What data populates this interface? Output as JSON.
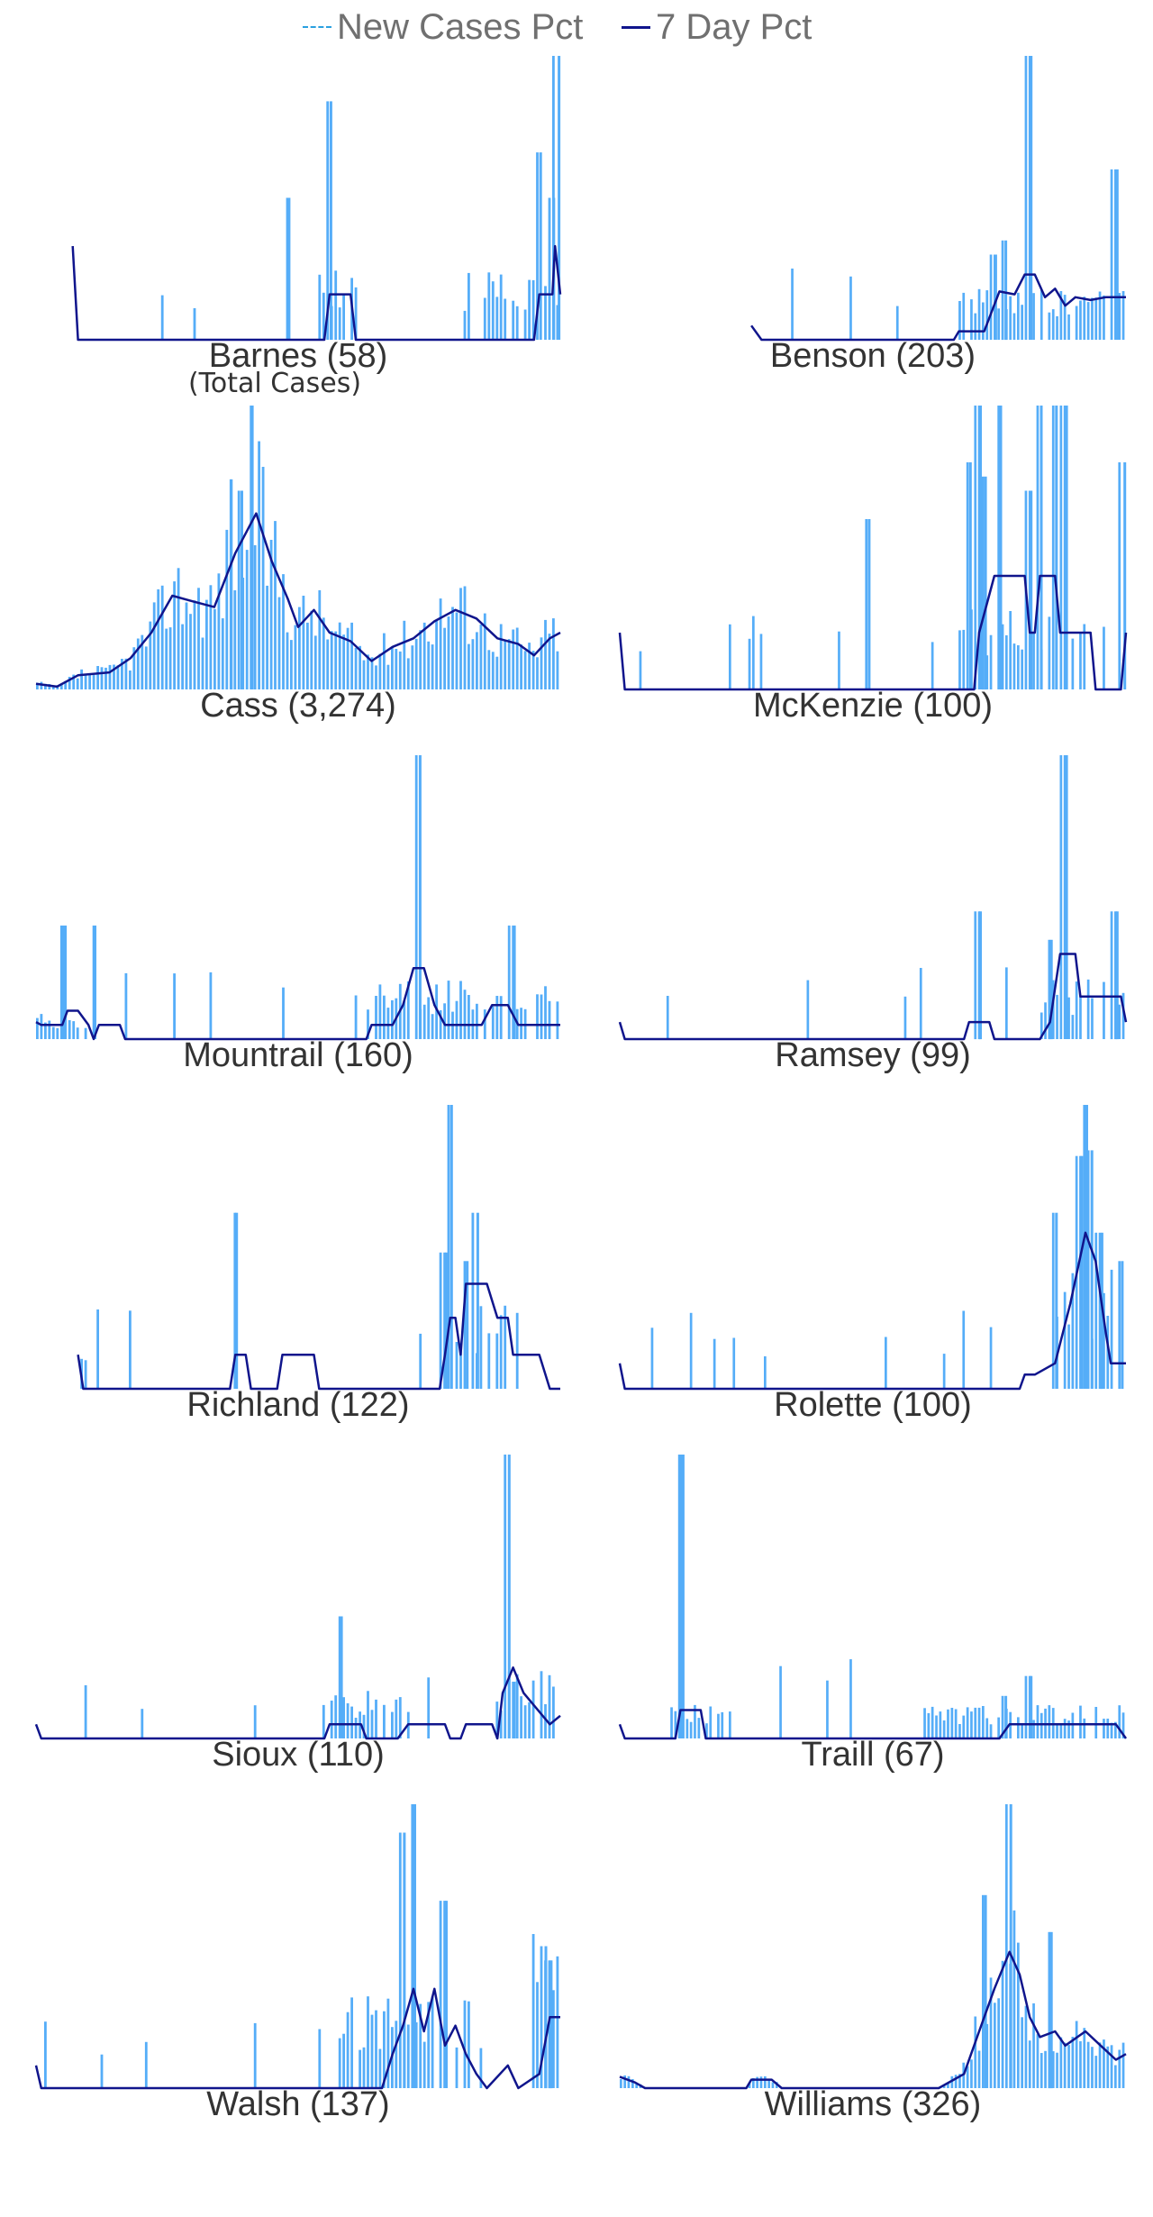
{
  "legend": {
    "new_cases_label": "New Cases Pct",
    "seven_day_label": "7 Day Pct"
  },
  "colors": {
    "bars": "#55adf8",
    "line": "#10158c",
    "dashed": "#2aa0e0",
    "text": "#333333"
  },
  "subtitle": "(Total Cases)",
  "chart_data": [
    {
      "type": "bar",
      "county": "Barnes",
      "title": "Barnes (58)",
      "total": 58,
      "seed": 11,
      "style": "sparse",
      "start": 0.07,
      "peaks": [
        {
          "p": 0.56,
          "h": 0.84
        },
        {
          "p": 0.48,
          "h": 0.5
        },
        {
          "p": 0.96,
          "h": 0.66
        },
        {
          "p": 0.995,
          "h": 1.0
        },
        {
          "p": 0.985,
          "h": 0.5
        }
      ],
      "clusters": [
        {
          "a": 0.55,
          "b": 0.62,
          "lvl": 0.18
        },
        {
          "a": 0.82,
          "b": 0.9,
          "lvl": 0.16
        },
        {
          "a": 0.91,
          "b": 1.0,
          "lvl": 0.16
        }
      ],
      "line": [
        [
          0.07,
          0.33
        ],
        [
          0.08,
          0
        ],
        [
          0.55,
          0
        ],
        [
          0.56,
          0.16
        ],
        [
          0.6,
          0.16
        ],
        [
          0.61,
          0
        ],
        [
          0.95,
          0
        ],
        [
          0.96,
          0.16
        ],
        [
          0.985,
          0.16
        ],
        [
          0.99,
          0.33
        ],
        [
          1.0,
          0.16
        ]
      ]
    },
    {
      "type": "bar",
      "county": "Benson",
      "title": "Benson (203)",
      "total": 203,
      "seed": 23,
      "style": "late",
      "start": 0.26,
      "peaks": [
        {
          "p": 0.81,
          "h": 1.0
        },
        {
          "p": 0.76,
          "h": 0.35
        },
        {
          "p": 0.98,
          "h": 0.6
        },
        {
          "p": 0.74,
          "h": 0.3
        }
      ],
      "clusters": [
        {
          "a": 0.66,
          "b": 1.0,
          "lvl": 0.12
        }
      ],
      "line": [
        [
          0.26,
          0.05
        ],
        [
          0.28,
          0
        ],
        [
          0.66,
          0
        ],
        [
          0.67,
          0.03
        ],
        [
          0.72,
          0.03
        ],
        [
          0.75,
          0.17
        ],
        [
          0.78,
          0.16
        ],
        [
          0.8,
          0.23
        ],
        [
          0.82,
          0.23
        ],
        [
          0.84,
          0.15
        ],
        [
          0.86,
          0.18
        ],
        [
          0.88,
          0.12
        ],
        [
          0.9,
          0.15
        ],
        [
          0.93,
          0.14
        ],
        [
          0.96,
          0.15
        ],
        [
          1.0,
          0.15
        ]
      ]
    },
    {
      "type": "bar",
      "county": "Cass",
      "title": "Cass (3,274)",
      "total": 3274,
      "seed": 37,
      "style": "dense",
      "start": 0.0,
      "peaks": [
        {
          "p": 0.41,
          "h": 1.0
        },
        {
          "p": 0.37,
          "h": 0.74
        },
        {
          "p": 0.39,
          "h": 0.7
        }
      ],
      "clusters": [],
      "line": [
        [
          0.0,
          0.02
        ],
        [
          0.04,
          0.01
        ],
        [
          0.08,
          0.05
        ],
        [
          0.14,
          0.06
        ],
        [
          0.18,
          0.11
        ],
        [
          0.22,
          0.2
        ],
        [
          0.26,
          0.33
        ],
        [
          0.3,
          0.31
        ],
        [
          0.34,
          0.29
        ],
        [
          0.38,
          0.48
        ],
        [
          0.42,
          0.62
        ],
        [
          0.45,
          0.45
        ],
        [
          0.48,
          0.32
        ],
        [
          0.5,
          0.22
        ],
        [
          0.53,
          0.28
        ],
        [
          0.56,
          0.2
        ],
        [
          0.6,
          0.17
        ],
        [
          0.64,
          0.1
        ],
        [
          0.68,
          0.15
        ],
        [
          0.72,
          0.18
        ],
        [
          0.76,
          0.24
        ],
        [
          0.8,
          0.28
        ],
        [
          0.84,
          0.25
        ],
        [
          0.88,
          0.18
        ],
        [
          0.92,
          0.16
        ],
        [
          0.95,
          0.12
        ],
        [
          0.98,
          0.18
        ],
        [
          1.0,
          0.2
        ]
      ]
    },
    {
      "type": "bar",
      "county": "McKenzie",
      "title": "McKenzie (100)",
      "total": 100,
      "seed": 41,
      "style": "spiky",
      "start": 0.0,
      "peaks": [
        {
          "p": 0.71,
          "h": 1.0
        },
        {
          "p": 0.75,
          "h": 1.0
        },
        {
          "p": 0.83,
          "h": 1.0
        },
        {
          "p": 0.86,
          "h": 1.0
        },
        {
          "p": 0.88,
          "h": 1.0
        },
        {
          "p": 0.995,
          "h": 0.8
        },
        {
          "p": 0.49,
          "h": 0.6
        },
        {
          "p": 0.69,
          "h": 0.8
        },
        {
          "p": 0.72,
          "h": 0.75
        },
        {
          "p": 0.81,
          "h": 0.7
        }
      ],
      "clusters": [
        {
          "a": 0.68,
          "b": 0.93,
          "lvl": 0.2
        }
      ],
      "line": [
        [
          0.0,
          0.2
        ],
        [
          0.01,
          0
        ],
        [
          0.7,
          0
        ],
        [
          0.71,
          0.2
        ],
        [
          0.74,
          0.4
        ],
        [
          0.8,
          0.4
        ],
        [
          0.81,
          0.2
        ],
        [
          0.82,
          0.2
        ],
        [
          0.83,
          0.4
        ],
        [
          0.86,
          0.4
        ],
        [
          0.87,
          0.2
        ],
        [
          0.93,
          0.2
        ],
        [
          0.94,
          0
        ],
        [
          0.99,
          0
        ],
        [
          1.0,
          0.2
        ]
      ]
    },
    {
      "type": "bar",
      "county": "Mountrail",
      "title": "Mountrail (160)",
      "total": 160,
      "seed": 53,
      "style": "spread",
      "start": 0.0,
      "peaks": [
        {
          "p": 0.73,
          "h": 1.0
        },
        {
          "p": 0.05,
          "h": 0.4
        },
        {
          "p": 0.11,
          "h": 0.4
        },
        {
          "p": 0.91,
          "h": 0.4
        }
      ],
      "clusters": [
        {
          "a": 0.0,
          "b": 0.1,
          "lvl": 0.06
        },
        {
          "a": 0.63,
          "b": 1.0,
          "lvl": 0.14
        }
      ],
      "line": [
        [
          0.0,
          0.06
        ],
        [
          0.01,
          0.05
        ],
        [
          0.05,
          0.05
        ],
        [
          0.06,
          0.1
        ],
        [
          0.08,
          0.1
        ],
        [
          0.1,
          0.05
        ],
        [
          0.11,
          0
        ],
        [
          0.12,
          0.05
        ],
        [
          0.16,
          0.05
        ],
        [
          0.17,
          0
        ],
        [
          0.63,
          0
        ],
        [
          0.64,
          0.05
        ],
        [
          0.68,
          0.05
        ],
        [
          0.7,
          0.12
        ],
        [
          0.72,
          0.25
        ],
        [
          0.74,
          0.25
        ],
        [
          0.76,
          0.12
        ],
        [
          0.78,
          0.05
        ],
        [
          0.85,
          0.05
        ],
        [
          0.87,
          0.12
        ],
        [
          0.9,
          0.12
        ],
        [
          0.92,
          0.05
        ],
        [
          0.97,
          0.05
        ],
        [
          1.0,
          0.05
        ]
      ]
    },
    {
      "type": "bar",
      "county": "Ramsey",
      "title": "Ramsey (99)",
      "total": 99,
      "seed": 61,
      "style": "late",
      "start": 0.0,
      "peaks": [
        {
          "p": 0.88,
          "h": 1.0
        },
        {
          "p": 0.71,
          "h": 0.45
        },
        {
          "p": 0.98,
          "h": 0.45
        },
        {
          "p": 0.85,
          "h": 0.35
        }
      ],
      "clusters": [
        {
          "a": 0.83,
          "b": 1.0,
          "lvl": 0.14
        }
      ],
      "line": [
        [
          0.0,
          0.06
        ],
        [
          0.01,
          0
        ],
        [
          0.68,
          0
        ],
        [
          0.69,
          0.06
        ],
        [
          0.73,
          0.06
        ],
        [
          0.74,
          0
        ],
        [
          0.83,
          0
        ],
        [
          0.85,
          0.06
        ],
        [
          0.87,
          0.3
        ],
        [
          0.9,
          0.3
        ],
        [
          0.91,
          0.15
        ],
        [
          0.92,
          0.15
        ],
        [
          0.94,
          0.15
        ],
        [
          0.99,
          0.15
        ],
        [
          1.0,
          0.06
        ]
      ]
    },
    {
      "type": "bar",
      "county": "Richland",
      "title": "Richland (122)",
      "total": 122,
      "seed": 71,
      "style": "spread",
      "start": 0.08,
      "peaks": [
        {
          "p": 0.79,
          "h": 1.0
        },
        {
          "p": 0.38,
          "h": 0.62
        },
        {
          "p": 0.84,
          "h": 0.62
        },
        {
          "p": 0.78,
          "h": 0.48
        },
        {
          "p": 0.82,
          "h": 0.45
        }
      ],
      "clusters": [
        {
          "a": 0.76,
          "b": 0.9,
          "lvl": 0.2
        }
      ],
      "line": [
        [
          0.08,
          0.12
        ],
        [
          0.09,
          0
        ],
        [
          0.37,
          0
        ],
        [
          0.38,
          0.12
        ],
        [
          0.4,
          0.12
        ],
        [
          0.41,
          0
        ],
        [
          0.46,
          0
        ],
        [
          0.47,
          0.12
        ],
        [
          0.53,
          0.12
        ],
        [
          0.54,
          0
        ],
        [
          0.77,
          0
        ],
        [
          0.78,
          0.12
        ],
        [
          0.79,
          0.25
        ],
        [
          0.8,
          0.25
        ],
        [
          0.81,
          0.12
        ],
        [
          0.82,
          0.37
        ],
        [
          0.86,
          0.37
        ],
        [
          0.88,
          0.25
        ],
        [
          0.9,
          0.25
        ],
        [
          0.91,
          0.12
        ],
        [
          0.96,
          0.12
        ],
        [
          0.98,
          0
        ],
        [
          1.0,
          0
        ]
      ]
    },
    {
      "type": "bar",
      "county": "Rolette",
      "title": "Rolette (100)",
      "total": 100,
      "seed": 83,
      "style": "late",
      "start": 0.0,
      "peaks": [
        {
          "p": 0.92,
          "h": 1.0
        },
        {
          "p": 0.86,
          "h": 0.62
        },
        {
          "p": 0.93,
          "h": 0.84
        },
        {
          "p": 0.95,
          "h": 0.55
        },
        {
          "p": 0.99,
          "h": 0.45
        },
        {
          "p": 0.91,
          "h": 0.82
        }
      ],
      "clusters": [
        {
          "a": 0.88,
          "b": 0.98,
          "lvl": 0.28
        }
      ],
      "line": [
        [
          0.0,
          0.09
        ],
        [
          0.01,
          0
        ],
        [
          0.79,
          0
        ],
        [
          0.8,
          0.05
        ],
        [
          0.82,
          0.05
        ],
        [
          0.86,
          0.09
        ],
        [
          0.89,
          0.3
        ],
        [
          0.92,
          0.55
        ],
        [
          0.94,
          0.45
        ],
        [
          0.96,
          0.2
        ],
        [
          0.97,
          0.09
        ],
        [
          1.0,
          0.09
        ]
      ]
    },
    {
      "type": "bar",
      "county": "Sioux",
      "title": "Sioux (110)",
      "total": 110,
      "seed": 97,
      "style": "sparse",
      "start": 0.0,
      "peaks": [
        {
          "p": 0.9,
          "h": 1.0
        },
        {
          "p": 0.58,
          "h": 0.43
        },
        {
          "p": 0.91,
          "h": 0.2
        }
      ],
      "clusters": [
        {
          "a": 0.55,
          "b": 0.72,
          "lvl": 0.12
        },
        {
          "a": 0.88,
          "b": 1.0,
          "lvl": 0.16
        }
      ],
      "line": [
        [
          0.0,
          0.05
        ],
        [
          0.01,
          0
        ],
        [
          0.55,
          0
        ],
        [
          0.56,
          0.05
        ],
        [
          0.62,
          0.05
        ],
        [
          0.63,
          0
        ],
        [
          0.69,
          0
        ],
        [
          0.71,
          0.05
        ],
        [
          0.78,
          0.05
        ],
        [
          0.79,
          0
        ],
        [
          0.81,
          0
        ],
        [
          0.82,
          0.05
        ],
        [
          0.87,
          0.05
        ],
        [
          0.88,
          0
        ],
        [
          0.89,
          0.16
        ],
        [
          0.91,
          0.25
        ],
        [
          0.93,
          0.16
        ],
        [
          0.98,
          0.05
        ],
        [
          1.0,
          0.08
        ]
      ]
    },
    {
      "type": "bar",
      "county": "Traill",
      "title": "Traill (67)",
      "total": 67,
      "seed": 101,
      "style": "sparse",
      "start": 0.0,
      "peaks": [
        {
          "p": 0.12,
          "h": 1.0
        },
        {
          "p": 0.81,
          "h": 0.22
        },
        {
          "p": 0.76,
          "h": 0.15
        }
      ],
      "clusters": [
        {
          "a": 0.1,
          "b": 0.22,
          "lvl": 0.08
        },
        {
          "a": 0.6,
          "b": 1.0,
          "lvl": 0.08
        }
      ],
      "line": [
        [
          0.0,
          0.05
        ],
        [
          0.01,
          0
        ],
        [
          0.11,
          0
        ],
        [
          0.12,
          0.1
        ],
        [
          0.16,
          0.1
        ],
        [
          0.17,
          0
        ],
        [
          0.75,
          0
        ],
        [
          0.77,
          0.05
        ],
        [
          0.98,
          0.05
        ],
        [
          1.0,
          0
        ]
      ]
    },
    {
      "type": "bar",
      "county": "Walsh",
      "title": "Walsh (137)",
      "total": 137,
      "seed": 113,
      "style": "spread",
      "start": 0.0,
      "peaks": [
        {
          "p": 0.72,
          "h": 1.0
        },
        {
          "p": 0.7,
          "h": 0.9
        },
        {
          "p": 0.97,
          "h": 0.5
        },
        {
          "p": 0.98,
          "h": 0.45
        },
        {
          "p": 0.78,
          "h": 0.66
        }
      ],
      "clusters": [
        {
          "a": 0.58,
          "b": 0.84,
          "lvl": 0.22
        },
        {
          "a": 0.95,
          "b": 1.0,
          "lvl": 0.4
        }
      ],
      "line": [
        [
          0.0,
          0.08
        ],
        [
          0.01,
          0
        ],
        [
          0.66,
          0
        ],
        [
          0.68,
          0.12
        ],
        [
          0.7,
          0.22
        ],
        [
          0.72,
          0.35
        ],
        [
          0.74,
          0.2
        ],
        [
          0.76,
          0.35
        ],
        [
          0.78,
          0.15
        ],
        [
          0.8,
          0.22
        ],
        [
          0.82,
          0.12
        ],
        [
          0.84,
          0.05
        ],
        [
          0.86,
          0
        ],
        [
          0.9,
          0.08
        ],
        [
          0.92,
          0
        ],
        [
          0.96,
          0.05
        ],
        [
          0.98,
          0.25
        ],
        [
          1.0,
          0.25
        ]
      ]
    },
    {
      "type": "bar",
      "county": "Williams",
      "title": "Williams (326)",
      "total": 326,
      "seed": 131,
      "style": "dense",
      "start": 0.0,
      "peaks": [
        {
          "p": 0.77,
          "h": 1.0
        },
        {
          "p": 0.72,
          "h": 0.68
        },
        {
          "p": 0.85,
          "h": 0.55
        }
      ],
      "clusters": [
        {
          "a": 0.62,
          "b": 1.0,
          "lvl": 0.2
        }
      ],
      "line": [
        [
          0.0,
          0.04
        ],
        [
          0.03,
          0.02
        ],
        [
          0.05,
          0
        ],
        [
          0.25,
          0
        ],
        [
          0.26,
          0.03
        ],
        [
          0.3,
          0.03
        ],
        [
          0.32,
          0
        ],
        [
          0.63,
          0
        ],
        [
          0.66,
          0.03
        ],
        [
          0.68,
          0.05
        ],
        [
          0.71,
          0.2
        ],
        [
          0.74,
          0.35
        ],
        [
          0.77,
          0.48
        ],
        [
          0.79,
          0.4
        ],
        [
          0.81,
          0.25
        ],
        [
          0.83,
          0.18
        ],
        [
          0.86,
          0.2
        ],
        [
          0.88,
          0.15
        ],
        [
          0.92,
          0.2
        ],
        [
          0.95,
          0.15
        ],
        [
          0.98,
          0.1
        ],
        [
          1.0,
          0.12
        ]
      ]
    }
  ]
}
